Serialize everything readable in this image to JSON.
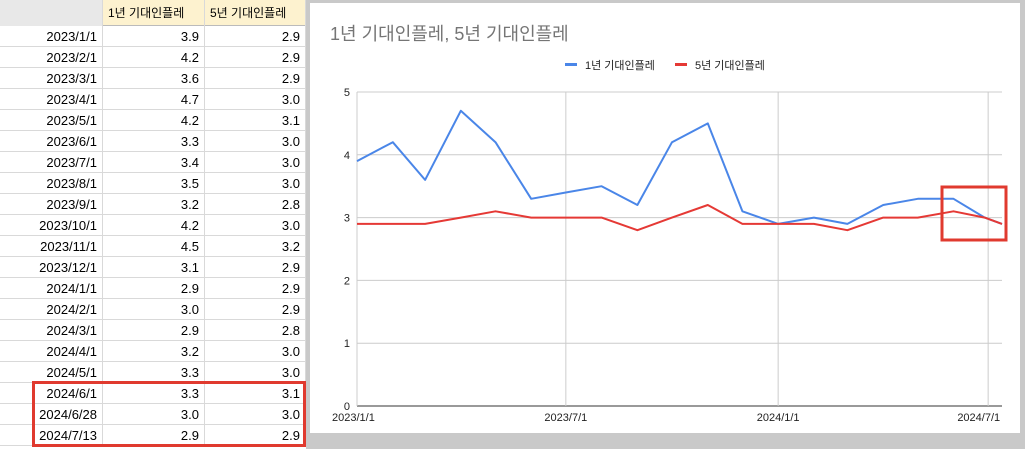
{
  "sheet": {
    "headers": [
      "",
      "1년 기대인플레",
      "5년 기대인플레"
    ],
    "rows": [
      [
        "2023/1/1",
        "3.9",
        "2.9"
      ],
      [
        "2023/2/1",
        "4.2",
        "2.9"
      ],
      [
        "2023/3/1",
        "3.6",
        "2.9"
      ],
      [
        "2023/4/1",
        "4.7",
        "3.0"
      ],
      [
        "2023/5/1",
        "4.2",
        "3.1"
      ],
      [
        "2023/6/1",
        "3.3",
        "3.0"
      ],
      [
        "2023/7/1",
        "3.4",
        "3.0"
      ],
      [
        "2023/8/1",
        "3.5",
        "3.0"
      ],
      [
        "2023/9/1",
        "3.2",
        "2.8"
      ],
      [
        "2023/10/1",
        "4.2",
        "3.0"
      ],
      [
        "2023/11/1",
        "4.5",
        "3.2"
      ],
      [
        "2023/12/1",
        "3.1",
        "2.9"
      ],
      [
        "2024/1/1",
        "2.9",
        "2.9"
      ],
      [
        "2024/2/1",
        "3.0",
        "2.9"
      ],
      [
        "2024/3/1",
        "2.9",
        "2.8"
      ],
      [
        "2024/4/1",
        "3.2",
        "3.0"
      ],
      [
        "2024/5/1",
        "3.3",
        "3.0"
      ],
      [
        "2024/6/1",
        "3.3",
        "3.1"
      ],
      [
        "2024/6/28",
        "3.0",
        "3.0"
      ],
      [
        "2024/7/13",
        "2.9",
        "2.9"
      ]
    ]
  },
  "colors": {
    "series1": "#4a86e8",
    "series2": "#e53935",
    "highlight": "#e03a2f",
    "grid": "#cccccc"
  },
  "chart_data": {
    "type": "line",
    "title": "1년 기대인플레, 5년 기대인플레",
    "xlabel": "",
    "ylabel": "",
    "x": [
      "2023/1/1",
      "2023/2/1",
      "2023/3/1",
      "2023/4/1",
      "2023/5/1",
      "2023/6/1",
      "2023/7/1",
      "2023/8/1",
      "2023/9/1",
      "2023/10/1",
      "2023/11/1",
      "2023/12/1",
      "2024/1/1",
      "2024/2/1",
      "2024/3/1",
      "2024/4/1",
      "2024/5/1",
      "2024/6/1",
      "2024/6/28",
      "2024/7/13"
    ],
    "series": [
      {
        "name": "1년 기대인플레",
        "values": [
          3.9,
          4.2,
          3.6,
          4.7,
          4.2,
          3.3,
          3.4,
          3.5,
          3.2,
          4.2,
          4.5,
          3.1,
          2.9,
          3.0,
          2.9,
          3.2,
          3.3,
          3.3,
          3.0,
          2.9
        ]
      },
      {
        "name": "5년 기대인플레",
        "values": [
          2.9,
          2.9,
          2.9,
          3.0,
          3.1,
          3.0,
          3.0,
          3.0,
          2.8,
          3.0,
          3.2,
          2.9,
          2.9,
          2.9,
          2.8,
          3.0,
          3.0,
          3.1,
          3.0,
          2.9
        ]
      }
    ],
    "ylim": [
      0,
      5
    ],
    "y_ticks": [
      "0",
      "1",
      "2",
      "3",
      "4",
      "5"
    ],
    "x_ticks": [
      "2023/1/1",
      "2023/7/1",
      "2024/1/1",
      "2024/7/1"
    ],
    "x_tick_dates": [
      "2023-01-01",
      "2023-07-01",
      "2024-01-01",
      "2024-07-01"
    ],
    "x_range": [
      "2023-01-01",
      "2024-07-13"
    ],
    "legend": "top-center",
    "grid": true
  }
}
